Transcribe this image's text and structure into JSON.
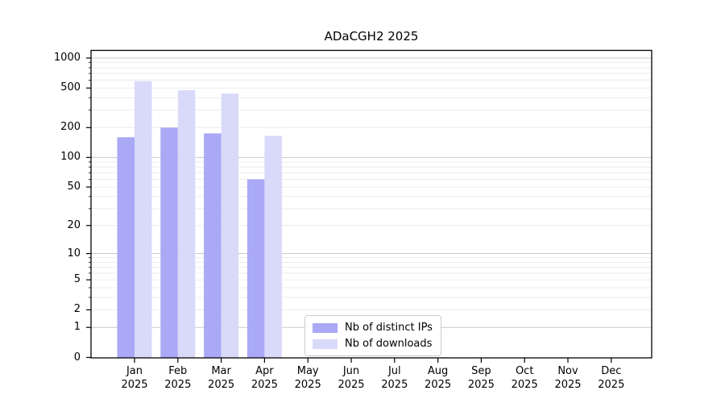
{
  "chart_data": {
    "type": "bar",
    "title": "ADaCGH2 2025",
    "categories": [
      "Jan",
      "Feb",
      "Mar",
      "Apr",
      "May",
      "Jun",
      "Jul",
      "Aug",
      "Sep",
      "Oct",
      "Nov",
      "Dec"
    ],
    "year_label": "2025",
    "series": [
      {
        "name": "Nb of distinct IPs",
        "color": "#a9a9f6",
        "values": [
          160,
          200,
          175,
          60,
          0,
          0,
          0,
          0,
          0,
          0,
          0,
          0
        ]
      },
      {
        "name": "Nb of downloads",
        "color": "#d9d9fa",
        "values": [
          585,
          475,
          440,
          165,
          0,
          0,
          0,
          0,
          0,
          0,
          0,
          0
        ]
      }
    ],
    "y_ticks": [
      1000,
      500,
      200,
      100,
      50,
      20,
      10,
      5,
      2,
      1,
      0
    ],
    "y_minor_ticks": [
      2,
      3,
      4,
      5,
      6,
      7,
      8,
      9,
      20,
      30,
      40,
      50,
      60,
      70,
      80,
      90,
      200,
      300,
      400,
      500,
      600,
      700,
      800,
      900
    ],
    "y_scale": "log1p",
    "ylim": [
      0,
      1000
    ],
    "grid": true,
    "legend_position": "lower center"
  },
  "colors": {
    "background": "#ffffff",
    "spine": "#000000",
    "major_grid": "#c9c9c9",
    "minor_grid": "#ececec",
    "text": "#000000"
  }
}
